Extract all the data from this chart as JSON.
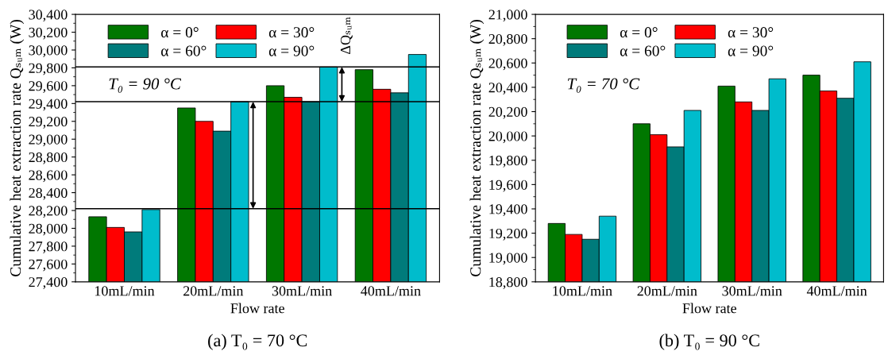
{
  "chart_data": [
    {
      "type": "bar",
      "title": "(a) T₀ = 70 °C",
      "xlabel": "Flow rate",
      "ylabel": "Cumulative heat extraction rate Qₛᵤₘ (W)",
      "categories": [
        "10mL/min",
        "20mL/min",
        "30mL/min",
        "40mL/min"
      ],
      "series": [
        {
          "name": "α = 0°",
          "color": "#007700",
          "values": [
            28130,
            29350,
            29600,
            29780
          ]
        },
        {
          "name": "α = 30°",
          "color": "#ff0000",
          "values": [
            28010,
            29200,
            29470,
            29560
          ]
        },
        {
          "name": "α = 60°",
          "color": "#007b7b",
          "values": [
            27960,
            29090,
            29420,
            29520
          ]
        },
        {
          "name": "α = 90°",
          "color": "#00bccc",
          "values": [
            28210,
            29420,
            29810,
            29950
          ]
        }
      ],
      "ylim": [
        27400,
        30400
      ],
      "yticks": [
        {
          "value": 27400,
          "label": "27,400"
        },
        {
          "value": 27600,
          "label": "27,600"
        },
        {
          "value": 27800,
          "label": "27,800"
        },
        {
          "value": 28000,
          "label": "28,000"
        },
        {
          "value": 28200,
          "label": "28,200"
        },
        {
          "value": 28400,
          "label": "28,400"
        },
        {
          "value": 28600,
          "label": "28,600"
        },
        {
          "value": 28800,
          "label": "28,800"
        },
        {
          "value": 29000,
          "label": "29,000"
        },
        {
          "value": 29200,
          "label": "29,200"
        },
        {
          "value": 29400,
          "label": "29,400"
        },
        {
          "value": 29600,
          "label": "29,600"
        },
        {
          "value": 29800,
          "label": "29,800"
        },
        {
          "value": 30000,
          "label": "30,000"
        },
        {
          "value": 30200,
          "label": "30,200"
        },
        {
          "value": 30400,
          "label": "30,400"
        }
      ],
      "ref_lines": [
        {
          "axis": "y",
          "value": 28220,
          "color": "#000000"
        },
        {
          "axis": "y",
          "value": 29420,
          "color": "#000000"
        },
        {
          "axis": "y",
          "value": 29810,
          "color": "#000000"
        }
      ],
      "annotations": [
        "T₀ = 90 °C",
        "ΔQₛᵤₘ"
      ],
      "legend": "top left",
      "grid": false
    },
    {
      "type": "bar",
      "title": "(b) T₀ = 90 °C",
      "xlabel": "Flow rate",
      "ylabel": "Cumulative heat extraction rate Qₛᵤₘ (W)",
      "categories": [
        "10mL/min",
        "20mL/min",
        "30mL/min",
        "40mL/min"
      ],
      "series": [
        {
          "name": "α = 0°",
          "color": "#007700",
          "values": [
            19280,
            20100,
            20410,
            20500
          ]
        },
        {
          "name": "α = 30°",
          "color": "#ff0000",
          "values": [
            19190,
            20010,
            20280,
            20370
          ]
        },
        {
          "name": "α = 60°",
          "color": "#007b7b",
          "values": [
            19150,
            19910,
            20210,
            20310
          ]
        },
        {
          "name": "α = 90°",
          "color": "#00bccc",
          "values": [
            19340,
            20210,
            20470,
            20610
          ]
        }
      ],
      "ylim": [
        18800,
        21000
      ],
      "yticks": [
        {
          "value": 18800,
          "label": "18,800"
        },
        {
          "value": 19000,
          "label": "19,000"
        },
        {
          "value": 19200,
          "label": "19,200"
        },
        {
          "value": 19400,
          "label": "19,400"
        },
        {
          "value": 19600,
          "label": "19,600"
        },
        {
          "value": 19800,
          "label": "19,800"
        },
        {
          "value": 20000,
          "label": "20,000"
        },
        {
          "value": 20200,
          "label": "20,200"
        },
        {
          "value": 20400,
          "label": "20,400"
        },
        {
          "value": 20600,
          "label": "20,600"
        },
        {
          "value": 20800,
          "label": "20,800"
        },
        {
          "value": 21000,
          "label": "21,000"
        }
      ],
      "annotations": [
        "T₀ = 70 °C"
      ],
      "legend": "top left",
      "grid": false
    }
  ]
}
